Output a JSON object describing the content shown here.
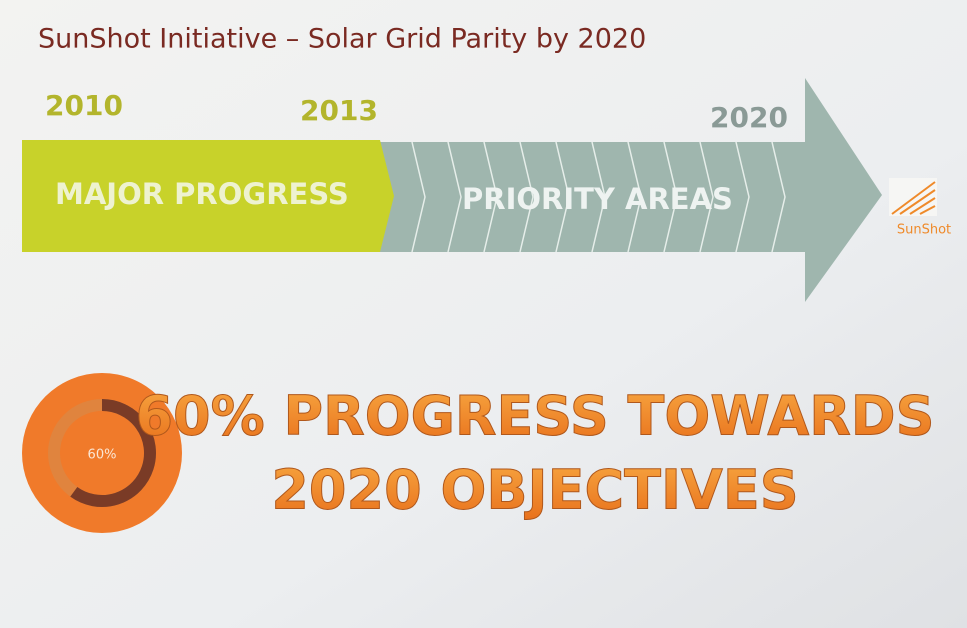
{
  "title": "SunShot Initiative – Solar Grid Parity by 2020",
  "timeline": {
    "years": [
      "2010",
      "2013",
      "2020"
    ],
    "segments": [
      "MAJOR PROGRESS",
      "PRIORITY AREAS"
    ]
  },
  "logo": {
    "text": "SunShot"
  },
  "progress": {
    "value": 60,
    "label": "60%"
  },
  "headline": {
    "lines": [
      "60% PROGRESS TOWARDS",
      "2020 OBJECTIVES"
    ]
  }
}
